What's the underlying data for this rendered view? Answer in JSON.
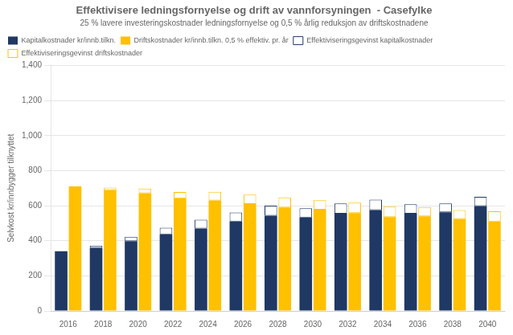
{
  "chart_data": {
    "type": "bar",
    "title": "Effektivisere ledningsfornyelse og drift av vannforsyningen  - Casefylke",
    "subtitle": "25 % lavere investeringskostnader ledningsfornyelse og 0,5 % årlig reduksjon av driftskostnadene",
    "ylabel": "Selvkost kr/innbygger tilknyttet",
    "categories": [
      2016,
      2018,
      2020,
      2022,
      2024,
      2026,
      2028,
      2030,
      2032,
      2034,
      2036,
      2038,
      2040
    ],
    "stacked": true,
    "series": [
      {
        "name": "Kapitalkostnader kr/innb.tilkn.",
        "color": "#1F3864",
        "values": [
          340,
          360,
          398,
          437,
          470,
          510,
          543,
          533,
          555,
          575,
          555,
          563,
          598
        ]
      },
      {
        "name": "Driftskostnader kr/innb.tilkn. 0,5 % effektiv. pr. år",
        "color": "#FFC000",
        "values": [
          710,
          690,
          672,
          643,
          630,
          610,
          590,
          578,
          558,
          535,
          540,
          525,
          510
        ]
      },
      {
        "name": "Effektiviseringsgevinst kapitalkostnader",
        "color": "#1F3864",
        "values": [
          0,
          13,
          25,
          38,
          50,
          52,
          58,
          53,
          58,
          60,
          53,
          50,
          53
        ]
      },
      {
        "name": "Effektiviseringsgevinst driftskostnader",
        "color": "#FFC000",
        "values": [
          0,
          14,
          26,
          35,
          50,
          53,
          58,
          53,
          60,
          60,
          53,
          50,
          58
        ]
      }
    ],
    "ylim": [
      0,
      1400
    ],
    "yticks": [
      0,
      200,
      400,
      600,
      800,
      1000,
      1200,
      1400
    ],
    "grid": true,
    "legend": "top"
  }
}
